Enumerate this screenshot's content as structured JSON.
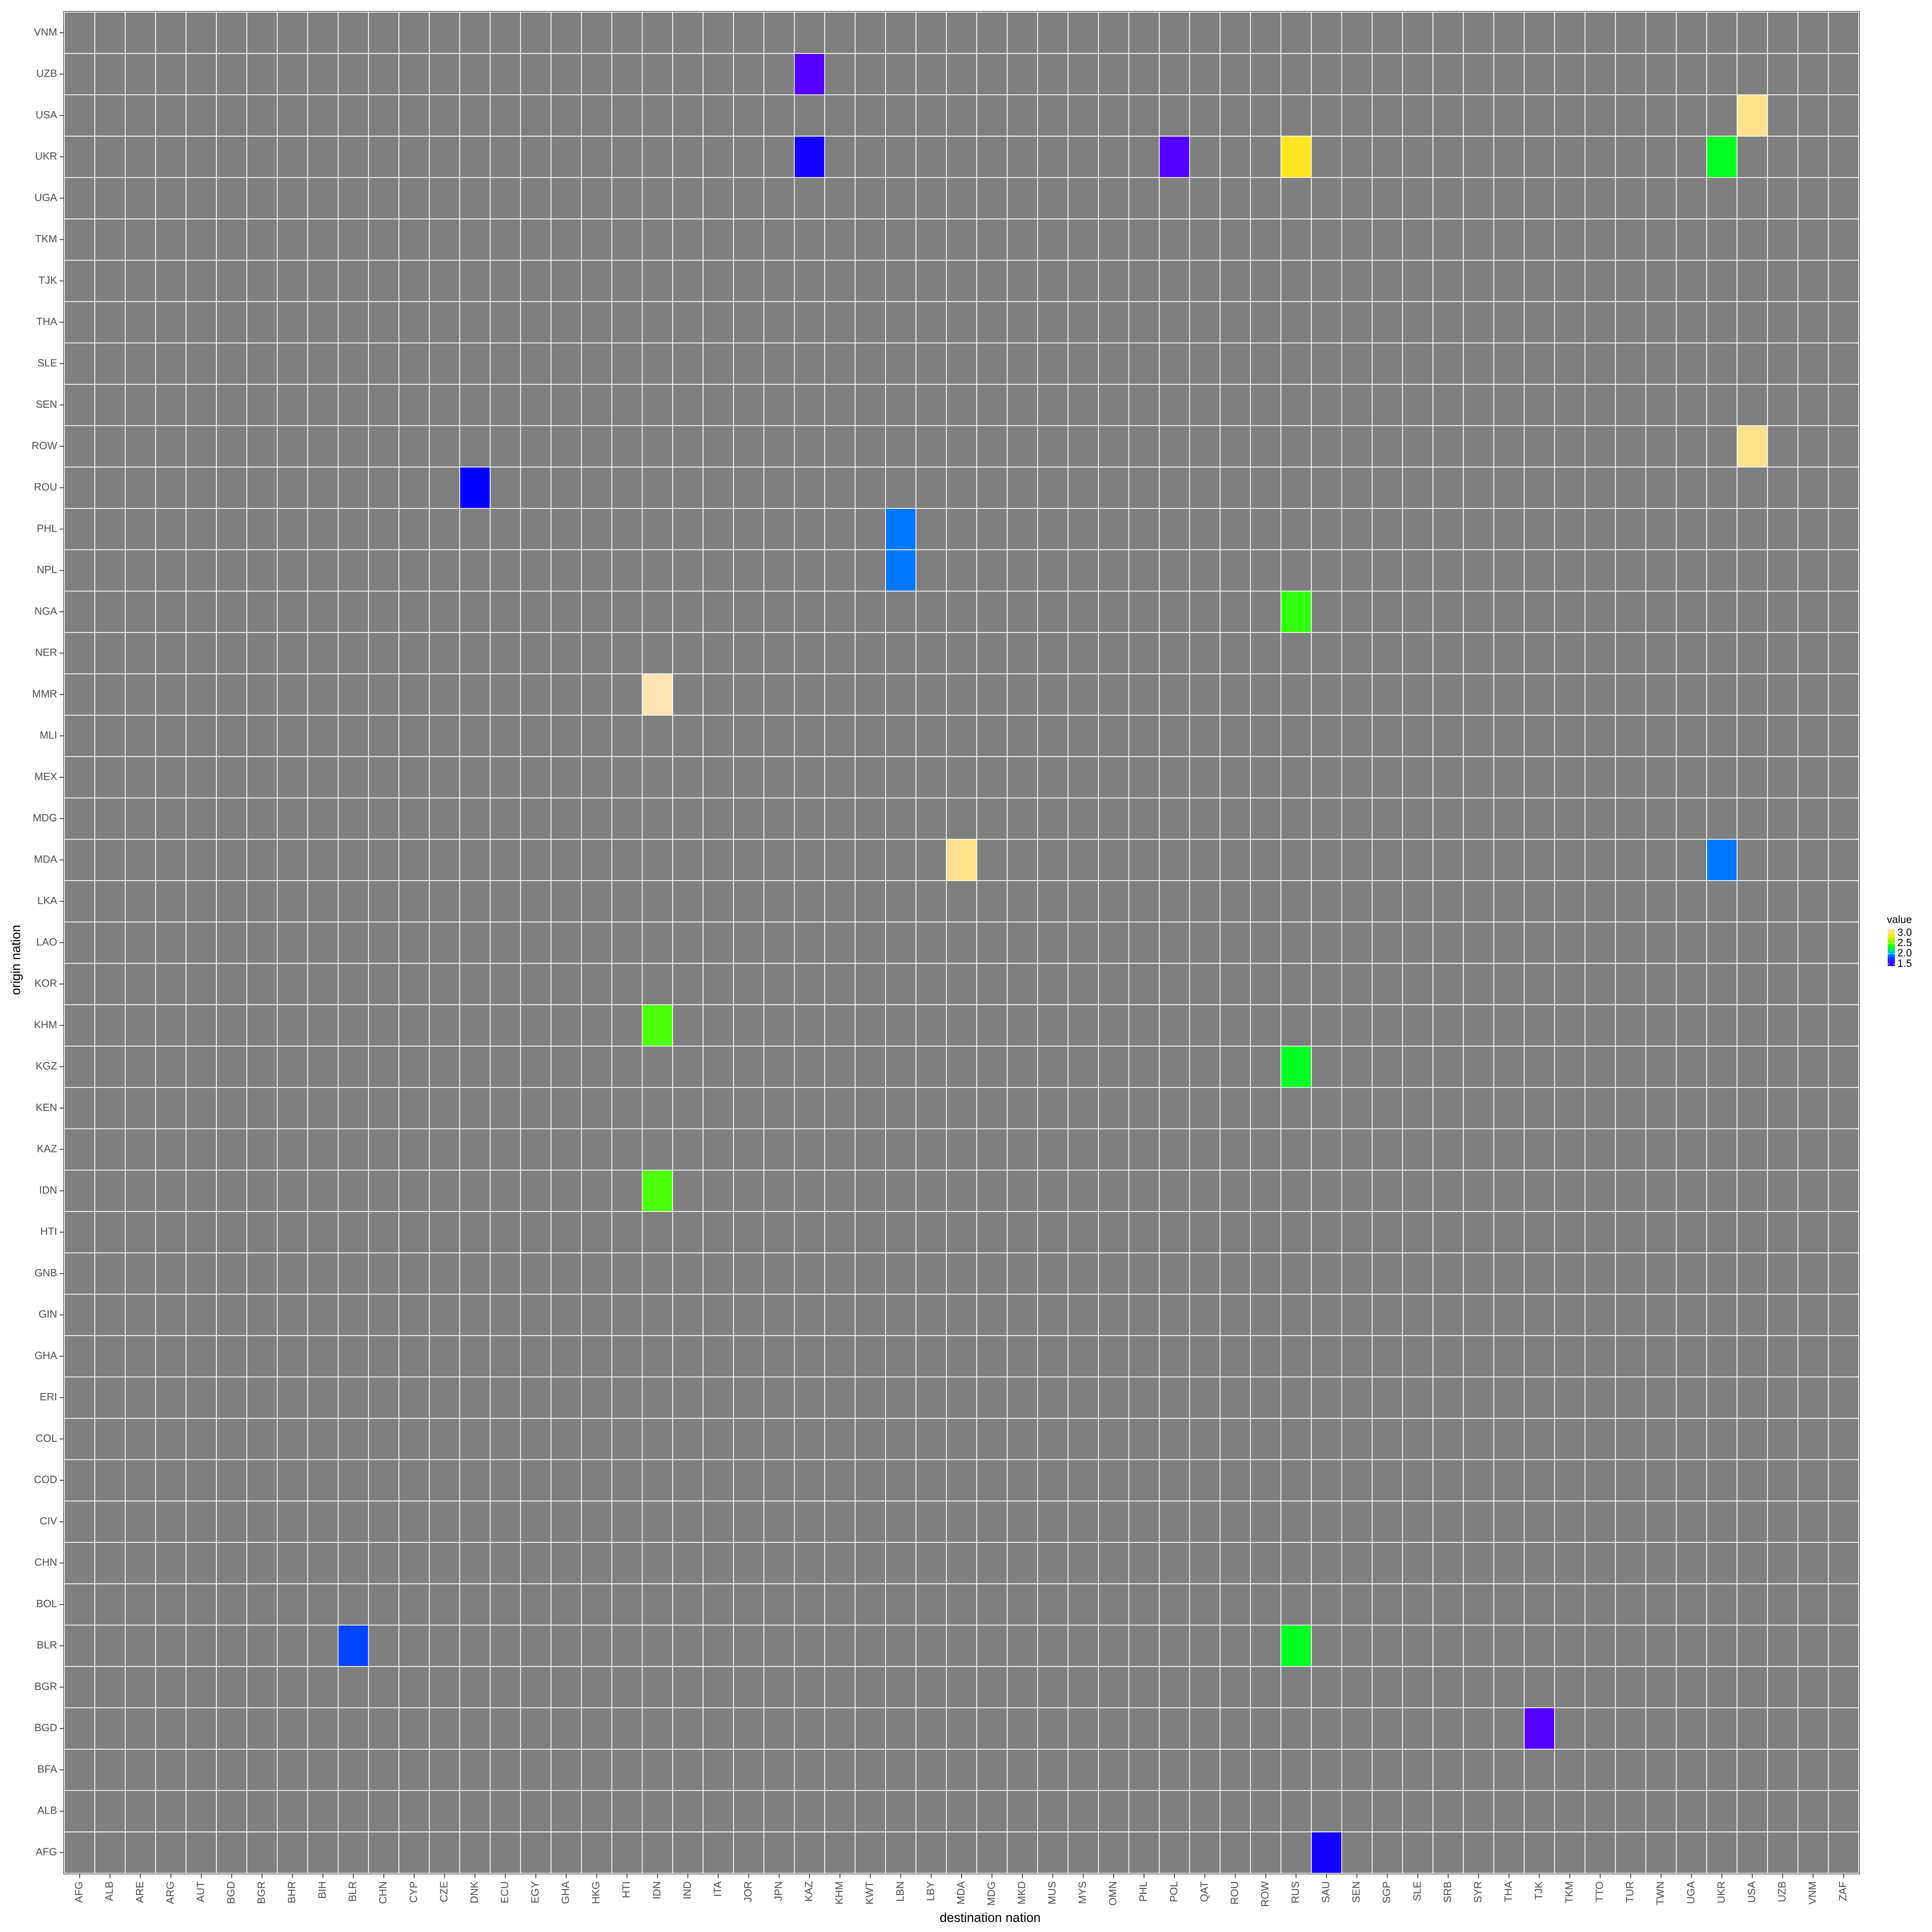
{
  "chart_data": {
    "type": "heatmap",
    "title": "",
    "xlabel": "destination nation",
    "ylabel": "origin nation",
    "x_categories": [
      "AFG",
      "ALB",
      "ARE",
      "ARG",
      "AUT",
      "BGD",
      "BGR",
      "BHR",
      "BIH",
      "BLR",
      "CHN",
      "CYP",
      "CZE",
      "DNK",
      "ECU",
      "EGY",
      "GHA",
      "HKG",
      "HTI",
      "IDN",
      "IND",
      "ITA",
      "JOR",
      "JPN",
      "KAZ",
      "KHM",
      "KWT",
      "LBN",
      "LBY",
      "MDA",
      "MDG",
      "MKD",
      "MUS",
      "MYS",
      "OMN",
      "PHL",
      "POL",
      "QAT",
      "ROU",
      "ROW",
      "RUS",
      "SAU",
      "SEN",
      "SGP",
      "SLE",
      "SRB",
      "SYR",
      "THA",
      "TJK",
      "TKM",
      "TTO",
      "TUR",
      "TWN",
      "UGA",
      "UKR",
      "USA",
      "UZB",
      "VNM",
      "ZAF"
    ],
    "y_categories": [
      "AFG",
      "ALB",
      "BFA",
      "BGD",
      "BGR",
      "BLR",
      "BOL",
      "CHN",
      "CIV",
      "COD",
      "COL",
      "ERI",
      "GHA",
      "GIN",
      "GNB",
      "HTI",
      "IDN",
      "KAZ",
      "KEN",
      "KGZ",
      "KHM",
      "KOR",
      "LAO",
      "LKA",
      "MDA",
      "MDG",
      "MEX",
      "MLI",
      "MMR",
      "NER",
      "NGA",
      "NPL",
      "PHL",
      "ROU",
      "ROW",
      "SEN",
      "SLE",
      "THA",
      "TJK",
      "TKM",
      "UGA",
      "UKR",
      "USA",
      "UZB",
      "VNM"
    ],
    "cells": [
      {
        "x": "KAZ",
        "y": "UZB",
        "value": 1.6
      },
      {
        "x": "USA",
        "y": "USA",
        "value": 3.1
      },
      {
        "x": "KAZ",
        "y": "UKR",
        "value": 1.45
      },
      {
        "x": "POL",
        "y": "UKR",
        "value": 1.6
      },
      {
        "x": "RUS",
        "y": "UKR",
        "value": 2.9
      },
      {
        "x": "UKR",
        "y": "UKR",
        "value": 2.3
      },
      {
        "x": "USA",
        "y": "ROW",
        "value": 3.1
      },
      {
        "x": "DNK",
        "y": "ROU",
        "value": 1.4
      },
      {
        "x": "LBN",
        "y": "PHL",
        "value": 1.9
      },
      {
        "x": "LBN",
        "y": "NPL",
        "value": 1.9
      },
      {
        "x": "RUS",
        "y": "NGA",
        "value": 2.4
      },
      {
        "x": "IDN",
        "y": "MMR",
        "value": 3.2
      },
      {
        "x": "MDA",
        "y": "MDA",
        "value": 3.1
      },
      {
        "x": "UKR",
        "y": "MDA",
        "value": 1.9
      },
      {
        "x": "IDN",
        "y": "KHM",
        "value": 2.45
      },
      {
        "x": "RUS",
        "y": "KGZ",
        "value": 2.3
      },
      {
        "x": "IDN",
        "y": "IDN",
        "value": 2.45
      },
      {
        "x": "BLR",
        "y": "BLR",
        "value": 1.8
      },
      {
        "x": "RUS",
        "y": "BLR",
        "value": 2.3
      },
      {
        "x": "TJK",
        "y": "BGD",
        "value": 1.6
      },
      {
        "x": "SAU",
        "y": "AFG",
        "value": 1.45
      }
    ],
    "missing_color": "#7f7f7f",
    "grid": true,
    "legend": {
      "title": "value",
      "position": "right",
      "ticks": [
        1.5,
        2.0,
        2.5,
        3.0
      ],
      "tick_labels": [
        "1.5",
        "2.0",
        "2.5",
        "3.0"
      ],
      "range": [
        1.4,
        3.2
      ],
      "color_stops": [
        {
          "value": 1.4,
          "color": "#0000ff"
        },
        {
          "value": 1.6,
          "color": "#5500ff"
        },
        {
          "value": 1.8,
          "color": "#0044ff"
        },
        {
          "value": 2.0,
          "color": "#00aaff"
        },
        {
          "value": 2.3,
          "color": "#00ff22"
        },
        {
          "value": 2.5,
          "color": "#66ff00"
        },
        {
          "value": 2.9,
          "color": "#ffe622"
        },
        {
          "value": 3.1,
          "color": "#ffe08c"
        },
        {
          "value": 3.2,
          "color": "#ffe4b5"
        }
      ]
    }
  }
}
